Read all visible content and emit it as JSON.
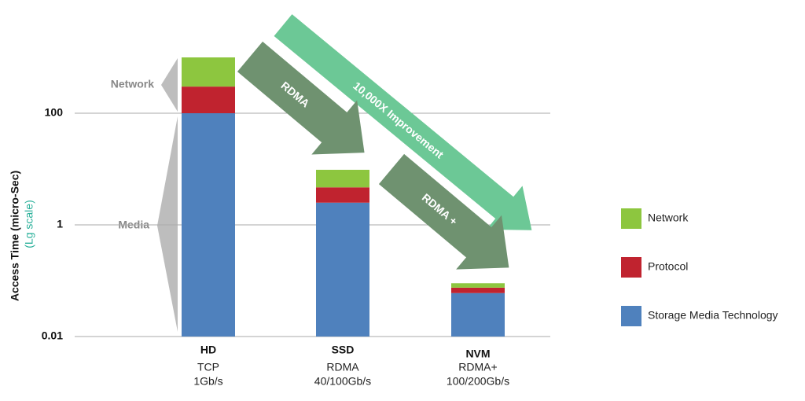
{
  "chart_data": {
    "type": "stacked_bar",
    "y_label": "Access Time (micro-Sec)",
    "y_label_note": "(Lg scale)",
    "log_scale": true,
    "grid": true,
    "ylim": [
      0.01,
      1000
    ],
    "yticks": [
      0.01,
      1,
      100
    ],
    "categories": [
      "HD",
      "SSD",
      "NVM"
    ],
    "sublabels": [
      [
        "TCP",
        "1Gb/s"
      ],
      [
        "RDMA",
        "40/100Gb/s"
      ],
      [
        "RDMA+",
        "100/200Gb/s"
      ]
    ],
    "series": [
      {
        "name": "Storage Media Technology",
        "color": "#4f81bd",
        "values": [
          100,
          2.5,
          0.06
        ]
      },
      {
        "name": "Protocol",
        "color": "#c0232f",
        "values": [
          200,
          2.2,
          0.015
        ]
      },
      {
        "name": "Network",
        "color": "#8dc63f",
        "values": [
          700,
          5,
          0.015
        ]
      }
    ],
    "side_labels": [
      "Network",
      "Media"
    ],
    "arrows": [
      "RDMA",
      "RDMA +",
      "10,000X Improvement"
    ],
    "legend": "right"
  }
}
